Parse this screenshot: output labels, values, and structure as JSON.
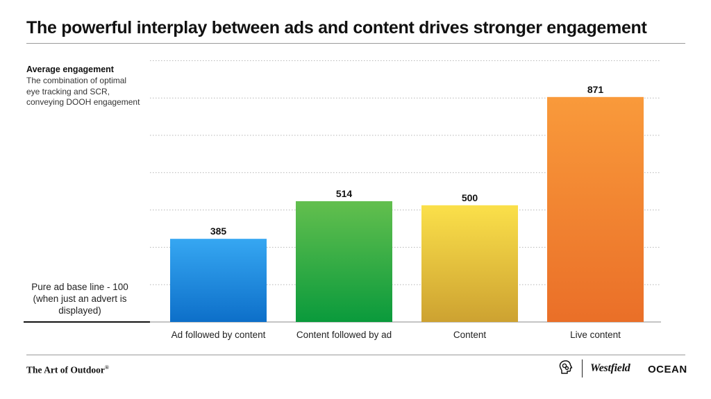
{
  "title": "The powerful interplay between ads and content drives stronger engagement",
  "side_heading": "Average engagement",
  "side_description": "The combination of optimal eye tracking and SCR, conveying DOOH engagement",
  "baseline_label": "Pure ad base line - 100 (when just an advert is displayed)",
  "footer": {
    "brand": "The Art of Outdoor",
    "brand_mark": "®",
    "logos": [
      "Westfield",
      "OCEAN"
    ],
    "logo_icon": "brain-gears-icon"
  },
  "chart_data": {
    "type": "bar",
    "categories": [
      "Ad followed by content",
      "Content followed by ad",
      "Content",
      "Live content"
    ],
    "values": [
      385,
      514,
      500,
      871
    ],
    "data_labels": [
      "385",
      "514",
      "500",
      "871"
    ],
    "baseline": 100,
    "ylim": [
      100,
      1000
    ],
    "grid": true,
    "colors": [
      {
        "top": "#36a7f2",
        "bottom": "#0d6fc9"
      },
      {
        "top": "#63bf4e",
        "bottom": "#0a9a3c"
      },
      {
        "top": "#fbe04a",
        "bottom": "#cda231"
      },
      {
        "top": "#f99a3b",
        "bottom": "#ea6f28"
      }
    ]
  }
}
